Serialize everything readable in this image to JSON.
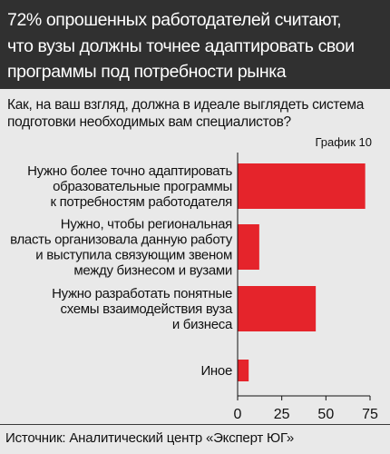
{
  "header": {
    "lines": [
      "72% опрошенных работодателей считают,",
      "что вузы должны точнее адаптировать свои",
      "программы под потребности рынка"
    ]
  },
  "question": {
    "lines": [
      "Как, на ваш взгляд, должна в идеале выглядеть система",
      "подготовки необходимых вам специалистов?"
    ]
  },
  "chart_number": "График 10",
  "source": "Источник: Аналитический центр «Эксперт ЮГ»",
  "colors": {
    "bar": "#e5242b",
    "header_bg": "#303030",
    "background": "#e9e9e9"
  },
  "chart_data": {
    "type": "bar",
    "orientation": "horizontal",
    "title": "",
    "xlabel": "",
    "ylabel": "",
    "xlim": [
      0,
      75
    ],
    "xticks": [
      0,
      25,
      50,
      75
    ],
    "grid": false,
    "categories": [
      [
        "Нужно более точно адаптировать",
        "образовательные программы",
        "к потребностям работодателя"
      ],
      [
        "Нужно, чтобы региональная",
        "власть организовала данную работу",
        "и выступила связующим звеном",
        "между бизнесом и вузами"
      ],
      [
        "Нужно разработать понятные",
        "схемы взаимодействия вуза",
        "и бизнеса"
      ],
      [
        "Иное"
      ]
    ],
    "values": [
      72,
      12,
      44,
      6
    ]
  }
}
